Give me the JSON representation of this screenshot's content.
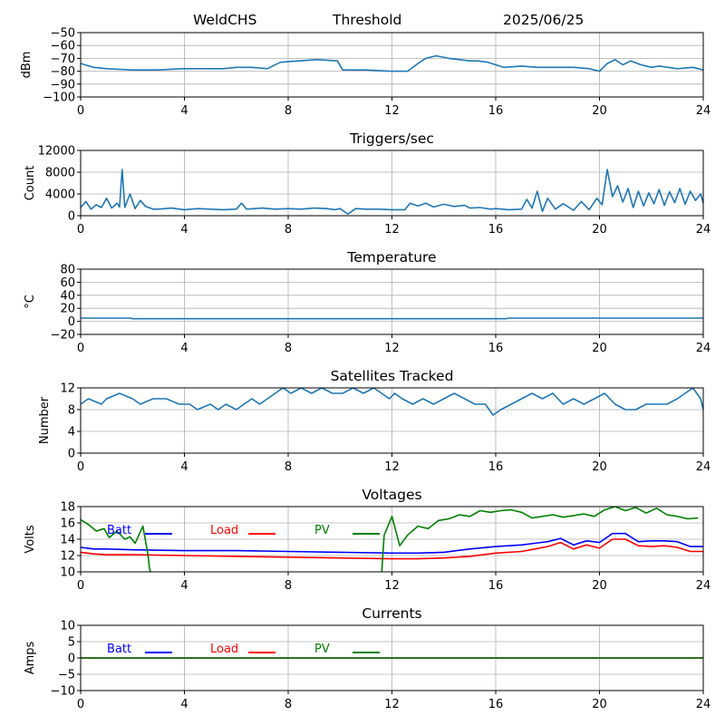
{
  "header": {
    "left": "WeldCHS",
    "center": "Threshold",
    "right": "2025/06/25"
  },
  "chart_data": [
    {
      "type": "line",
      "title": "",
      "ylabel": "dBm",
      "xlim": [
        0,
        24
      ],
      "ylim": [
        -100,
        -50
      ],
      "xticks": [
        0,
        4,
        8,
        12,
        16,
        20,
        24
      ],
      "yticks": [
        -100,
        -90,
        -80,
        -70,
        -60,
        -50
      ],
      "grid": true,
      "series": [
        {
          "color": "#1f77b4",
          "x": [
            0,
            0.5,
            1,
            2,
            3,
            3.9,
            4.5,
            5.5,
            6,
            6.6,
            7.2,
            7.7,
            8.4,
            9.1,
            9.9,
            10.1,
            11,
            11.9,
            12.6,
            13,
            13.3,
            13.7,
            14.2,
            15,
            15.3,
            15.7,
            16.3,
            17,
            17.6,
            18.3,
            19,
            19.6,
            20,
            20.3,
            20.6,
            20.9,
            21.2,
            21.6,
            22,
            22.3,
            23,
            23.6,
            24
          ],
          "y": [
            -74,
            -77,
            -78,
            -79,
            -79,
            -78,
            -78,
            -78,
            -77,
            -77,
            -78,
            -73,
            -72,
            -71,
            -72,
            -79,
            -79,
            -80,
            -80,
            -74,
            -70,
            -68,
            -70,
            -72,
            -72,
            -73,
            -77,
            -76,
            -77,
            -77,
            -77,
            -78,
            -80,
            -74,
            -71,
            -75,
            -72,
            -75,
            -77,
            -76,
            -78,
            -77,
            -79
          ]
        }
      ]
    },
    {
      "type": "line",
      "title": "Triggers/sec",
      "ylabel": "Count",
      "xlim": [
        0,
        24
      ],
      "ylim": [
        0,
        12000
      ],
      "xticks": [
        0,
        4,
        8,
        12,
        16,
        20,
        24
      ],
      "yticks": [
        0,
        4000,
        8000,
        12000
      ],
      "grid": true,
      "series": [
        {
          "color": "#1f77b4",
          "x": [
            0,
            0.2,
            0.4,
            0.6,
            0.8,
            1,
            1.2,
            1.4,
            1.5,
            1.6,
            1.7,
            1.9,
            2.1,
            2.3,
            2.5,
            2.8,
            3,
            3.5,
            4,
            4.5,
            5,
            5.5,
            6,
            6.2,
            6.4,
            7,
            7.5,
            8,
            8.5,
            9,
            9.5,
            9.8,
            10,
            10.3,
            10.6,
            11,
            11.5,
            12,
            12.5,
            12.7,
            13,
            13.3,
            13.6,
            14,
            14.4,
            14.8,
            15,
            15.4,
            15.8,
            16,
            16.5,
            17,
            17.2,
            17.4,
            17.6,
            17.8,
            18,
            18.3,
            18.6,
            19,
            19.3,
            19.6,
            19.9,
            20.1,
            20.3,
            20.5,
            20.7,
            20.9,
            21.1,
            21.3,
            21.5,
            21.7,
            21.9,
            22.1,
            22.3,
            22.5,
            22.7,
            22.9,
            23.1,
            23.3,
            23.5,
            23.7,
            23.9,
            24
          ],
          "y": [
            1500,
            2600,
            1200,
            2000,
            1500,
            3200,
            1400,
            2300,
            1600,
            8500,
            1500,
            4000,
            1300,
            2800,
            1700,
            1200,
            1200,
            1400,
            1100,
            1300,
            1200,
            1100,
            1200,
            2300,
            1200,
            1400,
            1200,
            1300,
            1200,
            1400,
            1300,
            1100,
            1300,
            300,
            1300,
            1200,
            1200,
            1100,
            1100,
            2300,
            1800,
            2300,
            1600,
            2100,
            1700,
            1900,
            1400,
            1500,
            1200,
            1300,
            1100,
            1200,
            3000,
            1400,
            4500,
            800,
            3200,
            1200,
            2200,
            1000,
            2600,
            1100,
            3200,
            2000,
            8500,
            3500,
            5500,
            2500,
            5000,
            1500,
            4500,
            1800,
            4200,
            2200,
            4800,
            1900,
            4400,
            2400,
            5000,
            2100,
            4500,
            2800,
            4000,
            2300
          ]
        }
      ]
    },
    {
      "type": "line",
      "title": "Temperature",
      "ylabel": "°C",
      "xlim": [
        0,
        24
      ],
      "ylim": [
        -20,
        80
      ],
      "xticks": [
        0,
        4,
        8,
        12,
        16,
        20,
        24
      ],
      "yticks": [
        -20,
        0,
        20,
        40,
        60,
        80
      ],
      "grid": true,
      "series": [
        {
          "color": "#1f77b4",
          "x": [
            0,
            1.9,
            2,
            16.4,
            16.5,
            24
          ],
          "y": [
            5,
            5,
            4,
            4,
            5,
            5
          ]
        }
      ]
    },
    {
      "type": "line",
      "title": "Satellites Tracked",
      "ylabel": "Number",
      "xlim": [
        0,
        24
      ],
      "ylim": [
        0,
        12
      ],
      "xticks": [
        0,
        4,
        8,
        12,
        16,
        20,
        24
      ],
      "yticks": [
        0,
        4,
        8,
        12
      ],
      "grid": true,
      "series": [
        {
          "color": "#1f77b4",
          "x": [
            0,
            0.3,
            0.8,
            1,
            1.5,
            2,
            2.3,
            2.8,
            3.3,
            3.8,
            4.2,
            4.5,
            5,
            5.3,
            5.6,
            6,
            6.3,
            6.6,
            6.9,
            7.2,
            7.5,
            7.8,
            8.1,
            8.5,
            8.9,
            9.3,
            9.7,
            10.1,
            10.5,
            10.9,
            11.3,
            11.6,
            11.9,
            12.1,
            12.4,
            12.8,
            13.2,
            13.6,
            14,
            14.4,
            14.8,
            15.2,
            15.6,
            15.9,
            16.2,
            16.6,
            17,
            17.4,
            17.8,
            18.2,
            18.6,
            19,
            19.4,
            19.8,
            20.2,
            20.6,
            21,
            21.4,
            21.8,
            22.2,
            22.6,
            23,
            23.3,
            23.6,
            23.9,
            24
          ],
          "y": [
            9,
            10,
            9,
            10,
            11,
            10,
            9,
            10,
            10,
            9,
            9,
            8,
            9,
            8,
            9,
            8,
            9,
            10,
            9,
            10,
            11,
            12,
            11,
            12,
            11,
            12,
            11,
            11,
            12,
            11,
            12,
            11,
            10,
            11,
            10,
            9,
            10,
            9,
            10,
            11,
            10,
            9,
            9,
            7,
            8,
            9,
            10,
            11,
            10,
            11,
            9,
            10,
            9,
            10,
            11,
            9,
            8,
            8,
            9,
            9,
            9,
            10,
            11,
            12,
            10,
            8
          ]
        }
      ]
    },
    {
      "type": "line",
      "title": "Voltages",
      "ylabel": "Volts",
      "xlim": [
        0,
        24
      ],
      "ylim": [
        10,
        18
      ],
      "xticks": [
        0,
        4,
        8,
        12,
        16,
        20,
        24
      ],
      "yticks": [
        10,
        12,
        14,
        16,
        18
      ],
      "grid": true,
      "legend": "top",
      "series": [
        {
          "name": "Batt",
          "color": "#0000ff",
          "x": [
            0,
            0.5,
            1,
            2,
            4,
            6,
            8,
            10,
            12,
            13,
            14,
            15,
            16,
            17,
            17.5,
            18,
            18.5,
            19,
            19.5,
            20,
            20.5,
            21,
            21.5,
            22,
            22.5,
            23,
            23.5,
            24
          ],
          "y": [
            13.0,
            12.8,
            12.8,
            12.7,
            12.6,
            12.6,
            12.5,
            12.4,
            12.3,
            12.3,
            12.4,
            12.8,
            13.1,
            13.3,
            13.5,
            13.7,
            14.1,
            13.3,
            13.8,
            13.6,
            14.7,
            14.7,
            13.7,
            13.8,
            13.8,
            13.7,
            13.1,
            13.1
          ]
        },
        {
          "name": "Load",
          "color": "#ff0000",
          "x": [
            0,
            0.5,
            1,
            2,
            4,
            6,
            8,
            10,
            12,
            13,
            14,
            15,
            16,
            17,
            17.5,
            18,
            18.5,
            19,
            19.5,
            20,
            20.5,
            21,
            21.5,
            22,
            22.5,
            23,
            23.5,
            24
          ],
          "y": [
            12.4,
            12.2,
            12.1,
            12.1,
            12.0,
            11.9,
            11.8,
            11.7,
            11.6,
            11.6,
            11.7,
            11.9,
            12.3,
            12.5,
            12.8,
            13.1,
            13.6,
            12.8,
            13.3,
            12.9,
            14.0,
            14.0,
            13.2,
            13.1,
            13.2,
            13.0,
            12.5,
            12.5
          ]
        },
        {
          "name": "PV",
          "color": "#008000",
          "x": [
            0,
            0.3,
            0.6,
            0.9,
            1.1,
            1.4,
            1.7,
            1.9,
            2.1,
            2.4,
            2.6,
            2.65,
            2.7,
            11.6,
            11.7,
            12,
            12.3,
            12.6,
            13,
            13.4,
            13.8,
            14.2,
            14.6,
            15,
            15.4,
            15.8,
            16.2,
            16.6,
            17,
            17.4,
            17.8,
            18.2,
            18.6,
            19,
            19.4,
            19.8,
            20.2,
            20.6,
            21,
            21.4,
            21.8,
            22.2,
            22.6,
            23,
            23.4,
            23.8
          ],
          "y": [
            16.4,
            15.8,
            15.0,
            15.3,
            14.2,
            15.0,
            14.0,
            14.3,
            13.5,
            15.6,
            12.0,
            10.5,
            9.8,
            9.8,
            14.5,
            16.8,
            13.2,
            14.5,
            15.6,
            15.3,
            16.3,
            16.5,
            17.0,
            16.8,
            17.5,
            17.3,
            17.5,
            17.6,
            17.3,
            16.6,
            16.8,
            17.0,
            16.7,
            16.9,
            17.1,
            16.8,
            17.6,
            18.0,
            17.5,
            17.9,
            17.2,
            17.8,
            17.0,
            16.8,
            16.5,
            16.6
          ]
        }
      ]
    },
    {
      "type": "line",
      "title": "Currents",
      "ylabel": "Amps",
      "xlim": [
        0,
        24
      ],
      "ylim": [
        -10,
        10
      ],
      "xticks": [
        0,
        4,
        8,
        12,
        16,
        20,
        24
      ],
      "yticks": [
        -10,
        -5,
        0,
        5,
        10
      ],
      "grid": true,
      "legend": "top",
      "series": [
        {
          "name": "Batt",
          "color": "#0000ff",
          "x": [
            0,
            24
          ],
          "y": [
            0,
            0
          ]
        },
        {
          "name": "Load",
          "color": "#ff0000",
          "x": [
            0,
            24
          ],
          "y": [
            0,
            0
          ]
        },
        {
          "name": "PV",
          "color": "#008000",
          "x": [
            0,
            24
          ],
          "y": [
            0,
            0
          ]
        }
      ]
    }
  ]
}
